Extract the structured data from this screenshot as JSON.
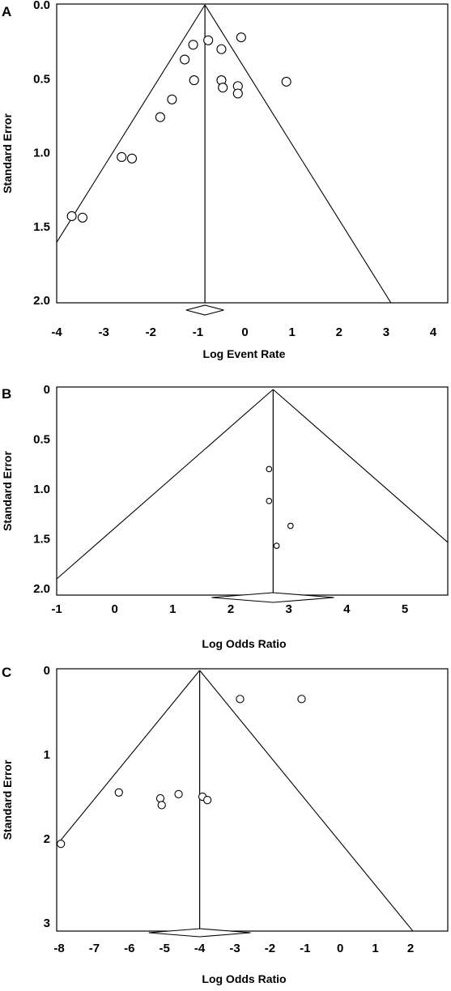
{
  "chart_data": [
    {
      "type": "scatter",
      "panel_label": "A",
      "title": "",
      "xlabel": "Log Event Rate",
      "ylabel": "Standard Error",
      "xlim": [
        -4,
        4
      ],
      "ylim": [
        0,
        2.0
      ],
      "y_inverted": true,
      "xticks": [
        "-4",
        "-3",
        "-2",
        "-1",
        "0",
        "1",
        "2",
        "3",
        "4"
      ],
      "xtick_values": [
        -4,
        -3,
        -2,
        -1,
        0,
        1,
        2,
        3,
        4
      ],
      "yticks": [
        "0.0",
        "0.5",
        "1.0",
        "1.5",
        "2.0"
      ],
      "ytick_values": [
        0,
        0.5,
        1.0,
        1.5,
        2.0
      ],
      "pooled_estimate": -0.85,
      "funnel_slope": 1.96,
      "summary_diamond": {
        "center": -0.85,
        "low": -1.25,
        "high": -0.45
      },
      "points": [
        {
          "x": -0.08,
          "y": 0.22
        },
        {
          "x": -0.78,
          "y": 0.24
        },
        {
          "x": -1.1,
          "y": 0.27
        },
        {
          "x": -0.5,
          "y": 0.3
        },
        {
          "x": -1.28,
          "y": 0.37
        },
        {
          "x": -1.08,
          "y": 0.51
        },
        {
          "x": -0.5,
          "y": 0.51
        },
        {
          "x": -0.47,
          "y": 0.56
        },
        {
          "x": -0.15,
          "y": 0.55
        },
        {
          "x": -0.15,
          "y": 0.6
        },
        {
          "x": 0.88,
          "y": 0.52
        },
        {
          "x": -1.55,
          "y": 0.64
        },
        {
          "x": -1.8,
          "y": 0.76
        },
        {
          "x": -2.62,
          "y": 1.03
        },
        {
          "x": -2.4,
          "y": 1.04
        },
        {
          "x": -3.68,
          "y": 1.43
        },
        {
          "x": -3.45,
          "y": 1.44
        }
      ],
      "marker_size": 5.5
    },
    {
      "type": "scatter",
      "panel_label": "B",
      "title": "",
      "xlabel": "Log Odds Ratio",
      "ylabel": "Standard Error",
      "xlim": [
        -1,
        5.7
      ],
      "ylim": [
        0,
        2.0
      ],
      "y_inverted": true,
      "xticks": [
        "-1",
        "0",
        "1",
        "2",
        "3",
        "4",
        "5"
      ],
      "xtick_values": [
        -1,
        0,
        1,
        2,
        3,
        4,
        5
      ],
      "yticks": [
        "0",
        "0.5",
        "1.0",
        "1.5",
        "2.0"
      ],
      "ytick_values": [
        0,
        0.5,
        1.0,
        1.5,
        2.0
      ],
      "pooled_estimate": 2.73,
      "funnel_slope": 1.96,
      "summary_diamond": {
        "center": 2.73,
        "low": 1.67,
        "high": 3.78
      },
      "points": [
        {
          "x": 2.66,
          "y": 0.8
        },
        {
          "x": 2.66,
          "y": 1.12
        },
        {
          "x": 3.03,
          "y": 1.37
        },
        {
          "x": 2.79,
          "y": 1.57
        }
      ],
      "marker_size": 3.3
    },
    {
      "type": "scatter",
      "panel_label": "C",
      "title": "",
      "xlabel": "Log Odds Ratio",
      "ylabel": "Standard Error",
      "xlim": [
        -8.2,
        2.7
      ],
      "ylim": [
        0,
        3
      ],
      "y_inverted": true,
      "xticks": [
        "-8",
        "-7",
        "-6",
        "-5",
        "-4",
        "-3",
        "-2",
        "-1",
        "0",
        "1",
        "2"
      ],
      "xtick_values": [
        -8,
        -7,
        -6,
        -5,
        -4,
        -3,
        -2,
        -1,
        0,
        1,
        2
      ],
      "yticks": [
        "0",
        "1",
        "2",
        "3"
      ],
      "ytick_values": [
        0,
        1,
        2,
        3
      ],
      "pooled_estimate": -4.0,
      "funnel_slope": 1.96,
      "summary_diamond": {
        "center": -4.0,
        "low": -5.45,
        "high": -2.55
      },
      "points": [
        {
          "x": -2.85,
          "y": 0.34
        },
        {
          "x": -1.1,
          "y": 0.34
        },
        {
          "x": -6.3,
          "y": 1.45
        },
        {
          "x": -5.12,
          "y": 1.52
        },
        {
          "x": -5.08,
          "y": 1.6
        },
        {
          "x": -4.6,
          "y": 1.47
        },
        {
          "x": -3.92,
          "y": 1.5
        },
        {
          "x": -3.78,
          "y": 1.54
        },
        {
          "x": -7.95,
          "y": 2.06
        }
      ],
      "marker_size": 4.6
    }
  ]
}
